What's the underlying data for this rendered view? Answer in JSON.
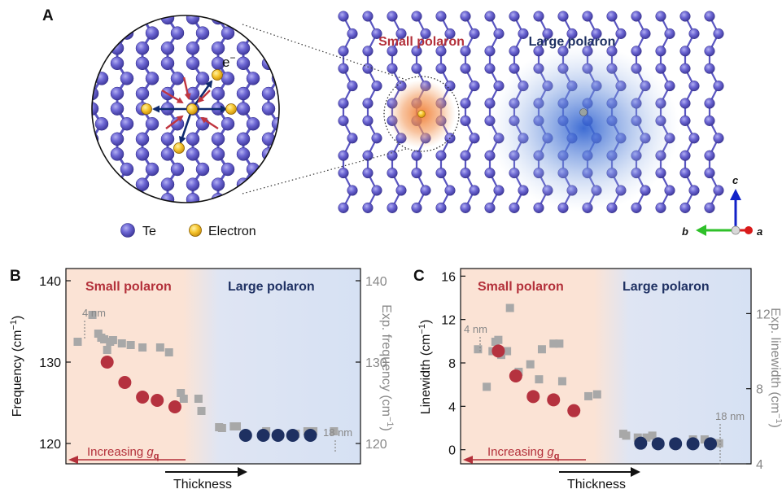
{
  "panel_a": {
    "label": "A",
    "small_title": "Small polaron",
    "large_title": "Large polaron",
    "electron_symbol": "e",
    "electron_sup": "−",
    "legend_te": "Te",
    "legend_electron": "Electron",
    "axis_c": "c",
    "axis_b": "b",
    "axis_a": "a",
    "colors": {
      "te_atom": "#6a64cf",
      "bond": "#5955c0",
      "electron": "#f2c230",
      "small_polaron_glow": "#f08a40",
      "large_polaron_glow": "#3e72d6",
      "small_title": "#b3303a",
      "large_title": "#1f3163"
    }
  },
  "panel_b": {
    "label": "B",
    "small_label": "Small polaron",
    "large_label": "Large polaron",
    "left_axis_label": "Frequency (cm",
    "right_axis_label": "Exp. frequency (cm",
    "sup": "−1",
    "close": ")",
    "x_label": "Thickness",
    "arrow_text": "Increasing ",
    "g_symbol": "g",
    "g_sub": "q",
    "thin_label": "4 nm",
    "thick_label": "18 nm"
  },
  "panel_c": {
    "label": "C",
    "small_label": "Small polaron",
    "large_label": "Large polaron",
    "left_axis_label": "Linewidth (cm",
    "right_axis_label": "Exp. linewidth (cm",
    "sup": "−1",
    "close": ")",
    "x_label": "Thickness",
    "arrow_text": "Increasing ",
    "g_symbol": "g",
    "g_sub": "q",
    "thin_label": "4 nm",
    "thick_label": "18 nm"
  },
  "chart_data": [
    {
      "type": "scatter",
      "panel": "B",
      "xlabel": "Thickness",
      "ylabel": "Frequency (cm−1)",
      "y2label": "Exp. frequency (cm−1)",
      "ylim": [
        117.5,
        141.5
      ],
      "y2lim": [
        117.5,
        141.5
      ],
      "yticks": [
        120,
        130,
        140
      ],
      "y2ticks": [
        120,
        130,
        140
      ],
      "xlim": [
        0,
        1
      ],
      "x_boundary": 0.46,
      "grid": false,
      "series": [
        {
          "name": "Small polaron",
          "color": "#b5323f",
          "x": [
            0.14,
            0.2,
            0.26,
            0.31,
            0.37
          ],
          "y": [
            130,
            127.5,
            125.7,
            125.3,
            124.5
          ]
        },
        {
          "name": "Large polaron",
          "color": "#1e3061",
          "x": [
            0.61,
            0.67,
            0.72,
            0.77,
            0.83
          ],
          "y": [
            121,
            121,
            121,
            121,
            121
          ]
        },
        {
          "color": "#a8a8a8",
          "x": [
            0.04,
            0.09,
            0.11,
            0.12,
            0.13,
            0.14,
            0.15,
            0.16,
            0.19,
            0.22,
            0.26,
            0.32,
            0.35,
            0.39,
            0.4,
            0.45,
            0.46,
            0.52,
            0.53,
            0.57,
            0.58,
            0.68,
            0.78,
            0.82,
            0.84,
            0.91
          ],
          "y": [
            132.5,
            135.8,
            133.5,
            133,
            132.8,
            131.5,
            132.5,
            132.7,
            132.3,
            132.1,
            131.8,
            131.8,
            131.2,
            126.2,
            125.5,
            125.5,
            124,
            122,
            121.9,
            122.1,
            122.1,
            121.5,
            121.2,
            121.5,
            121.5,
            121.5
          ]
        }
      ]
    },
    {
      "type": "scatter",
      "panel": "C",
      "xlabel": "Thickness",
      "ylabel": "Linewidth (cm−1)",
      "y2label": "Exp. linewidth (cm−1)",
      "ylim": [
        -1.3,
        16.7
      ],
      "y2lim": [
        4,
        14.4
      ],
      "yticks": [
        0,
        4,
        8,
        12,
        16
      ],
      "y2ticks": [
        4,
        8,
        12
      ],
      "xlim": [
        0,
        1
      ],
      "x_boundary": 0.53,
      "grid": false,
      "series": [
        {
          "name": "Small polaron",
          "color": "#b5323f",
          "x": [
            0.13,
            0.19,
            0.25,
            0.32,
            0.39
          ],
          "y": [
            9.1,
            6.8,
            4.9,
            4.6,
            3.6
          ]
        },
        {
          "name": "Large polaron",
          "color": "#1e3061",
          "x": [
            0.62,
            0.68,
            0.74,
            0.8,
            0.86
          ],
          "y": [
            0.6,
            0.55,
            0.55,
            0.55,
            0.55
          ]
        },
        {
          "color": "#a8a8a8",
          "x": [
            0.06,
            0.09,
            0.11,
            0.12,
            0.13,
            0.14,
            0.16,
            0.17,
            0.2,
            0.24,
            0.27,
            0.28,
            0.32,
            0.34,
            0.35,
            0.44,
            0.47,
            0.56,
            0.57,
            0.61,
            0.64,
            0.66,
            0.8,
            0.84,
            0.89
          ],
          "y": [
            10.1,
            8.1,
            10,
            10.5,
            10.6,
            9.8,
            10,
            12.3,
            8.9,
            9.3,
            8.5,
            10.1,
            10.4,
            10.4,
            8.4,
            7.6,
            7.7,
            5.6,
            5.5,
            5.4,
            5.4,
            5.5,
            5.3,
            5.3,
            5.1
          ]
        }
      ]
    }
  ]
}
